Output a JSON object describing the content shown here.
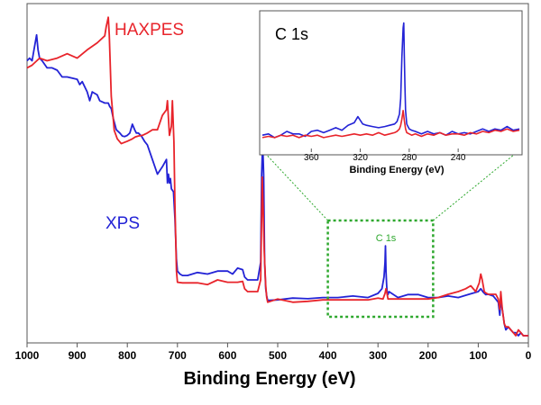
{
  "chart_data": [
    {
      "type": "line",
      "xlabel": "Binding Energy (eV)",
      "ylabel": "",
      "xlim": [
        1000,
        0
      ],
      "x_reversed": true,
      "x_ticks": [
        "1000",
        "900",
        "800",
        "700",
        "600",
        "500",
        "400",
        "300",
        "200",
        "100",
        "0"
      ],
      "y_ticks": [],
      "grid": false,
      "series_labels": [
        "HAXPES",
        "XPS"
      ],
      "series": [
        {
          "name": "HAXPES",
          "color": "#e8242b",
          "x": [
            1000,
            990,
            975,
            960,
            940,
            920,
            900,
            880,
            860,
            845,
            842,
            838,
            836,
            832,
            826,
            820,
            812,
            800,
            790,
            784,
            778,
            770,
            760,
            750,
            740,
            730,
            722,
            720,
            716,
            712,
            710,
            707,
            705,
            702,
            700,
            690,
            680,
            660,
            640,
            620,
            600,
            580,
            570,
            566,
            560,
            550,
            540,
            534,
            532,
            531,
            529,
            527,
            524,
            522,
            520,
            500,
            470,
            440,
            410,
            380,
            350,
            320,
            300,
            290,
            286,
            284,
            282,
            280,
            260,
            240,
            220,
            200,
            180,
            160,
            140,
            125,
            115,
            105,
            98,
            95,
            92,
            88,
            85,
            80,
            75,
            70,
            65,
            60,
            57,
            55,
            52,
            48,
            45,
            40,
            35,
            30,
            25,
            20,
            15,
            10,
            5,
            0
          ],
          "y": [
            0.812,
            0.821,
            0.845,
            0.836,
            0.845,
            0.86,
            0.845,
            0.873,
            0.897,
            0.921,
            0.952,
            0.984,
            0.924,
            0.715,
            0.599,
            0.57,
            0.554,
            0.562,
            0.57,
            0.577,
            0.58,
            0.582,
            0.59,
            0.601,
            0.601,
            0.65,
            0.669,
            0.7,
            0.582,
            0.613,
            0.7,
            0.56,
            0.35,
            0.12,
            0.082,
            0.08,
            0.08,
            0.08,
            0.074,
            0.09,
            0.082,
            0.082,
            0.085,
            0.06,
            0.05,
            0.05,
            0.05,
            0.09,
            0.31,
            0.44,
            0.33,
            0.19,
            0.07,
            0.03,
            0.014,
            0.025,
            0.014,
            0.017,
            0.022,
            0.022,
            0.022,
            0.022,
            0.028,
            0.025,
            0.044,
            0.06,
            0.044,
            0.025,
            0.025,
            0.025,
            0.025,
            0.025,
            0.03,
            0.041,
            0.05,
            0.06,
            0.07,
            0.05,
            0.08,
            0.11,
            0.09,
            0.05,
            0.046,
            0.041,
            0.041,
            0.041,
            0.041,
            0.025,
            -0.01,
            0.05,
            -0.01,
            -0.06,
            -0.07,
            -0.07,
            -0.08,
            -0.09,
            -0.1,
            -0.08,
            -0.09,
            -0.1,
            -0.1,
            -0.1
          ]
        },
        {
          "name": "XPS",
          "color": "#2323d6",
          "x": [
            1000,
            995,
            990,
            985,
            981,
            978,
            975,
            970,
            960,
            950,
            940,
            930,
            920,
            900,
            895,
            890,
            880,
            875,
            870,
            860,
            855,
            850,
            845,
            838,
            835,
            832,
            828,
            822,
            815,
            810,
            805,
            800,
            795,
            790,
            785,
            782,
            778,
            772,
            765,
            760,
            750,
            740,
            730,
            722,
            720,
            718,
            716,
            714,
            712,
            708,
            705,
            702,
            700,
            695,
            690,
            680,
            660,
            640,
            620,
            600,
            590,
            580,
            570,
            566,
            560,
            550,
            540,
            534,
            532,
            530,
            528,
            526,
            524,
            522,
            520,
            500,
            470,
            440,
            410,
            380,
            350,
            320,
            300,
            292,
            288,
            286,
            285,
            284,
            283,
            282,
            280,
            278,
            260,
            240,
            220,
            200,
            180,
            160,
            140,
            120,
            100,
            95,
            90,
            85,
            80,
            70,
            60,
            57,
            55,
            52,
            48,
            45,
            40,
            35,
            30,
            25,
            20,
            15,
            10,
            5,
            0
          ],
          "y": [
            0.836,
            0.845,
            0.836,
            0.884,
            0.924,
            0.873,
            0.845,
            0.836,
            0.812,
            0.812,
            0.804,
            0.781,
            0.781,
            0.773,
            0.755,
            0.765,
            0.73,
            0.7,
            0.73,
            0.72,
            0.7,
            0.696,
            0.692,
            0.692,
            0.68,
            0.673,
            0.64,
            0.601,
            0.59,
            0.58,
            0.578,
            0.582,
            0.59,
            0.62,
            0.6,
            0.59,
            0.59,
            0.58,
            0.56,
            0.55,
            0.5,
            0.45,
            0.475,
            0.5,
            0.42,
            0.45,
            0.42,
            0.435,
            0.4,
            0.39,
            0.3,
            0.16,
            0.12,
            0.11,
            0.105,
            0.105,
            0.115,
            0.11,
            0.12,
            0.12,
            0.11,
            0.13,
            0.125,
            0.1,
            0.09,
            0.09,
            0.09,
            0.15,
            0.45,
            0.56,
            0.45,
            0.15,
            0.06,
            0.035,
            0.02,
            0.022,
            0.028,
            0.026,
            0.03,
            0.03,
            0.035,
            0.03,
            0.044,
            0.06,
            0.1,
            0.15,
            0.206,
            0.12,
            0.08,
            0.052,
            0.04,
            0.05,
            0.03,
            0.04,
            0.04,
            0.03,
            0.03,
            0.035,
            0.03,
            0.04,
            0.05,
            0.06,
            0.048,
            0.04,
            0.041,
            0.035,
            0.014,
            -0.03,
            0.02,
            -0.01,
            -0.06,
            -0.08,
            -0.07,
            -0.08,
            -0.09,
            -0.09,
            -0.1,
            -0.09,
            -0.1,
            -0.1,
            -0.1
          ]
        }
      ],
      "zoom_box": {
        "label": "C 1s",
        "x_range": [
          400,
          190
        ],
        "color": "#2ea82e"
      }
    },
    {
      "type": "line",
      "title": "C 1s",
      "xlabel": "Binding Energy (eV)",
      "xlim": [
        400,
        190
      ],
      "x_reversed": true,
      "x_ticks": [
        "360",
        "320",
        "280",
        "240"
      ],
      "series": [
        {
          "name": "XPS",
          "color": "#2323d6",
          "x": [
            400,
            395,
            390,
            385,
            380,
            375,
            370,
            365,
            360,
            355,
            350,
            345,
            340,
            335,
            330,
            325,
            322,
            318,
            315,
            310,
            305,
            300,
            296,
            292,
            290,
            288,
            287,
            286,
            285,
            284.5,
            284,
            283.5,
            283,
            282,
            281,
            280,
            278,
            275,
            270,
            265,
            260,
            255,
            250,
            245,
            240,
            235,
            230,
            225,
            220,
            215,
            210,
            205,
            200,
            195,
            190
          ],
          "y": [
            0.05,
            0.06,
            0.03,
            0.05,
            0.08,
            0.06,
            0.06,
            0.04,
            0.08,
            0.09,
            0.07,
            0.09,
            0.11,
            0.09,
            0.13,
            0.15,
            0.2,
            0.14,
            0.13,
            0.12,
            0.11,
            0.12,
            0.13,
            0.14,
            0.16,
            0.22,
            0.35,
            0.68,
            0.92,
            0.96,
            0.7,
            0.45,
            0.25,
            0.14,
            0.12,
            0.1,
            0.09,
            0.08,
            0.06,
            0.08,
            0.06,
            0.07,
            0.05,
            0.08,
            0.06,
            0.07,
            0.06,
            0.08,
            0.1,
            0.08,
            0.1,
            0.09,
            0.12,
            0.09,
            0.1
          ]
        },
        {
          "name": "HAXPES",
          "color": "#e8242b",
          "x": [
            400,
            395,
            390,
            385,
            380,
            375,
            370,
            365,
            360,
            355,
            350,
            345,
            340,
            335,
            330,
            325,
            320,
            315,
            310,
            305,
            300,
            296,
            292,
            290,
            288,
            287,
            286,
            285,
            284,
            283,
            282,
            280,
            278,
            275,
            270,
            265,
            260,
            255,
            250,
            245,
            240,
            235,
            230,
            225,
            220,
            215,
            210,
            205,
            200,
            195,
            190
          ],
          "y": [
            0.03,
            0.04,
            0.03,
            0.05,
            0.04,
            0.05,
            0.03,
            0.05,
            0.04,
            0.05,
            0.03,
            0.04,
            0.05,
            0.04,
            0.05,
            0.06,
            0.05,
            0.06,
            0.05,
            0.07,
            0.05,
            0.06,
            0.07,
            0.08,
            0.1,
            0.13,
            0.18,
            0.25,
            0.17,
            0.1,
            0.07,
            0.06,
            0.05,
            0.06,
            0.04,
            0.06,
            0.05,
            0.07,
            0.05,
            0.06,
            0.06,
            0.05,
            0.07,
            0.06,
            0.08,
            0.07,
            0.09,
            0.08,
            0.1,
            0.08,
            0.09
          ]
        }
      ]
    }
  ]
}
